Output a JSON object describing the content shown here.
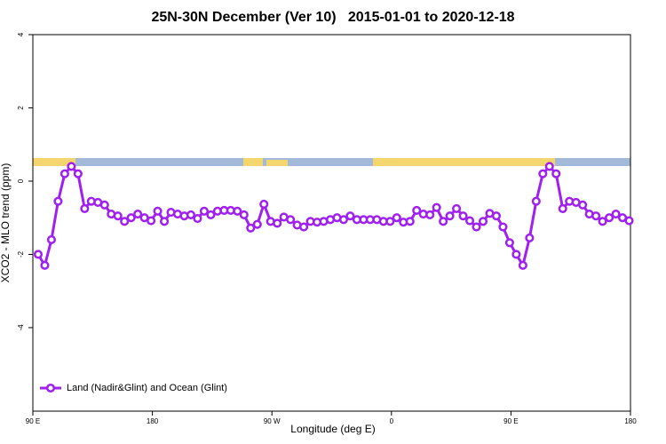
{
  "chart_data": {
    "type": "line",
    "title": "25N-30N December (Ver 10)   2015-01-01 to 2020-12-18",
    "x_label": "Longitude (deg E)",
    "y_label": "XCO2 - MLO trend (ppm)",
    "xlim": [
      90,
      540
    ],
    "xticks": [
      {
        "value": 90,
        "label": "90 E"
      },
      180,
      {
        "value": 270,
        "label": "90 W"
      },
      {
        "value": 360,
        "label": "0"
      },
      {
        "value": 450,
        "label": "90 E"
      },
      {
        "value": 540,
        "label": "180"
      }
    ],
    "ylim": [
      -6.28,
      4
    ],
    "yticks": [
      4,
      2,
      0,
      -2,
      -4
    ],
    "legend": "bottom-left",
    "series": [
      {
        "name": "Land (Nadir&Glint) and Ocean (Glint)",
        "color": "#a020f0",
        "x": [
          94,
          99,
          104,
          109,
          114,
          119,
          124,
          129,
          134,
          139,
          144,
          149,
          154,
          159,
          164,
          169,
          174,
          179,
          184,
          189,
          194,
          199,
          204,
          209,
          214,
          219,
          224,
          229,
          234,
          239,
          244,
          249,
          254,
          259,
          264,
          269,
          274,
          279,
          284,
          289,
          294,
          299,
          304,
          309,
          314,
          319,
          324,
          329,
          334,
          339,
          344,
          349,
          354,
          359,
          364,
          369,
          374,
          379,
          384,
          389,
          394,
          399,
          404,
          409,
          414,
          419,
          424,
          429,
          434,
          439,
          444,
          449,
          454,
          459,
          464,
          469,
          474,
          479,
          484,
          489,
          494,
          499,
          504,
          509,
          514,
          519,
          524,
          529,
          534,
          539
        ],
        "values": [
          -2.0,
          -2.3,
          -1.6,
          -0.55,
          0.2,
          0.4,
          0.2,
          -0.75,
          -0.55,
          -0.58,
          -0.65,
          -0.9,
          -0.95,
          -1.1,
          -1.0,
          -0.9,
          -1.0,
          -1.08,
          -0.82,
          -1.1,
          -0.85,
          -0.9,
          -0.95,
          -0.92,
          -1.02,
          -0.82,
          -0.92,
          -0.82,
          -0.8,
          -0.8,
          -0.82,
          -0.92,
          -1.28,
          -1.18,
          -0.63,
          -1.1,
          -1.15,
          -0.98,
          -1.05,
          -1.2,
          -1.25,
          -1.1,
          -1.12,
          -1.1,
          -1.05,
          -1.0,
          -1.05,
          -0.95,
          -1.05,
          -1.05,
          -1.05,
          -1.05,
          -1.1,
          -1.1,
          -1.0,
          -1.12,
          -1.1,
          -0.8,
          -0.9,
          -0.92,
          -0.72,
          -1.1,
          -0.95,
          -0.75,
          -0.95,
          -1.08,
          -1.25,
          -1.1,
          -0.88,
          -0.95,
          -1.25,
          -1.68,
          -2.0,
          -2.3,
          -1.55,
          -0.55,
          0.2,
          0.4,
          0.2,
          -0.75,
          -0.55,
          -0.58,
          -0.65,
          -0.9,
          -0.95,
          -1.1,
          -1.0,
          -0.9,
          -1.0,
          -1.08
        ]
      }
    ]
  }
}
